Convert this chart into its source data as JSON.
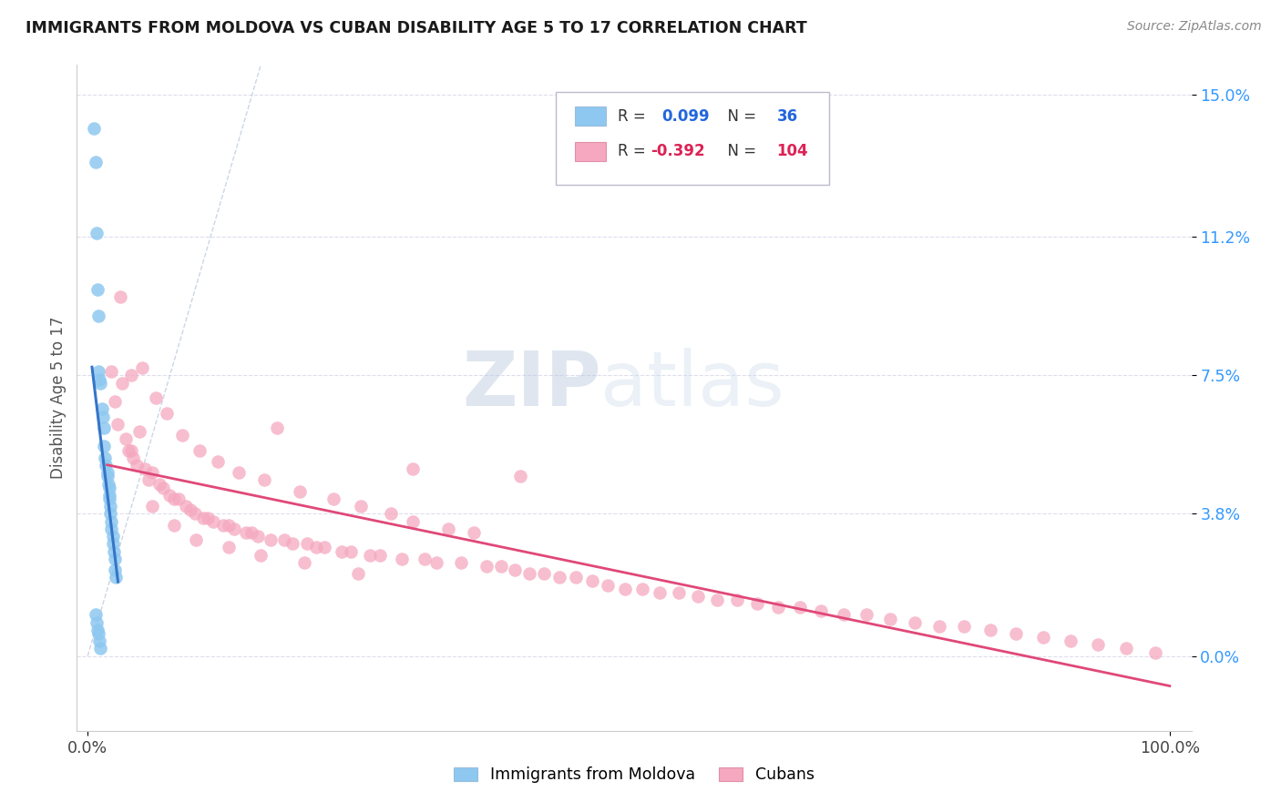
{
  "title": "IMMIGRANTS FROM MOLDOVA VS CUBAN DISABILITY AGE 5 TO 17 CORRELATION CHART",
  "source": "Source: ZipAtlas.com",
  "ylabel": "Disability Age 5 to 17",
  "color_moldova": "#8EC8F0",
  "color_cuban": "#F5A8C0",
  "color_trendline_moldova": "#3575C8",
  "color_trendline_cuban": "#E04878",
  "color_dashed": "#C0CCDD",
  "watermark_zip": "ZIP",
  "watermark_atlas": "atlas",
  "legend_text1": "R =  0.099   N =   36",
  "legend_text2": "R = -0.392   N = 104",
  "moldova_x": [
    0.006,
    0.007,
    0.008,
    0.009,
    0.01,
    0.01,
    0.011,
    0.012,
    0.013,
    0.014,
    0.015,
    0.015,
    0.016,
    0.017,
    0.018,
    0.018,
    0.019,
    0.02,
    0.02,
    0.02,
    0.021,
    0.021,
    0.022,
    0.022,
    0.023,
    0.023,
    0.024,
    0.025,
    0.025,
    0.026,
    0.007,
    0.008,
    0.009,
    0.01,
    0.011,
    0.012
  ],
  "moldova_y": [
    0.141,
    0.132,
    0.113,
    0.098,
    0.091,
    0.076,
    0.074,
    0.073,
    0.066,
    0.064,
    0.061,
    0.056,
    0.053,
    0.051,
    0.049,
    0.048,
    0.046,
    0.045,
    0.043,
    0.042,
    0.04,
    0.038,
    0.036,
    0.034,
    0.032,
    0.03,
    0.028,
    0.026,
    0.023,
    0.021,
    0.011,
    0.009,
    0.007,
    0.006,
    0.004,
    0.002
  ],
  "cuban_x": [
    0.022,
    0.025,
    0.028,
    0.03,
    0.032,
    0.035,
    0.038,
    0.04,
    0.042,
    0.045,
    0.048,
    0.05,
    0.053,
    0.056,
    0.06,
    0.063,
    0.066,
    0.07,
    0.073,
    0.076,
    0.08,
    0.084,
    0.087,
    0.091,
    0.095,
    0.099,
    0.103,
    0.107,
    0.111,
    0.116,
    0.12,
    0.125,
    0.13,
    0.135,
    0.14,
    0.146,
    0.151,
    0.157,
    0.163,
    0.169,
    0.175,
    0.182,
    0.189,
    0.196,
    0.203,
    0.211,
    0.219,
    0.227,
    0.235,
    0.243,
    0.252,
    0.261,
    0.27,
    0.28,
    0.29,
    0.3,
    0.311,
    0.322,
    0.333,
    0.345,
    0.357,
    0.369,
    0.382,
    0.395,
    0.408,
    0.422,
    0.436,
    0.451,
    0.466,
    0.481,
    0.497,
    0.513,
    0.529,
    0.546,
    0.564,
    0.582,
    0.6,
    0.619,
    0.638,
    0.658,
    0.678,
    0.699,
    0.72,
    0.742,
    0.764,
    0.787,
    0.81,
    0.834,
    0.858,
    0.883,
    0.908,
    0.934,
    0.96,
    0.987,
    0.04,
    0.06,
    0.08,
    0.1,
    0.13,
    0.16,
    0.2,
    0.25,
    0.3,
    0.4
  ],
  "cuban_y": [
    0.076,
    0.068,
    0.062,
    0.096,
    0.073,
    0.058,
    0.055,
    0.075,
    0.053,
    0.051,
    0.06,
    0.077,
    0.05,
    0.047,
    0.049,
    0.069,
    0.046,
    0.045,
    0.065,
    0.043,
    0.042,
    0.042,
    0.059,
    0.04,
    0.039,
    0.038,
    0.055,
    0.037,
    0.037,
    0.036,
    0.052,
    0.035,
    0.035,
    0.034,
    0.049,
    0.033,
    0.033,
    0.032,
    0.047,
    0.031,
    0.061,
    0.031,
    0.03,
    0.044,
    0.03,
    0.029,
    0.029,
    0.042,
    0.028,
    0.028,
    0.04,
    0.027,
    0.027,
    0.038,
    0.026,
    0.036,
    0.026,
    0.025,
    0.034,
    0.025,
    0.033,
    0.024,
    0.024,
    0.023,
    0.022,
    0.022,
    0.021,
    0.021,
    0.02,
    0.019,
    0.018,
    0.018,
    0.017,
    0.017,
    0.016,
    0.015,
    0.015,
    0.014,
    0.013,
    0.013,
    0.012,
    0.011,
    0.011,
    0.01,
    0.009,
    0.008,
    0.008,
    0.007,
    0.006,
    0.005,
    0.004,
    0.003,
    0.002,
    0.001,
    0.055,
    0.04,
    0.035,
    0.031,
    0.029,
    0.027,
    0.025,
    0.022,
    0.05,
    0.048
  ],
  "xlim": [
    -0.01,
    1.02
  ],
  "ylim": [
    -0.02,
    0.158
  ],
  "ytick_vals": [
    0.0,
    0.038,
    0.075,
    0.112,
    0.15
  ],
  "ytick_labels": [
    "0.0%",
    "3.8%",
    "7.5%",
    "11.2%",
    "15.0%"
  ],
  "xtick_vals": [
    0.0,
    1.0
  ],
  "xtick_labels": [
    "0.0%",
    "100.0%"
  ]
}
